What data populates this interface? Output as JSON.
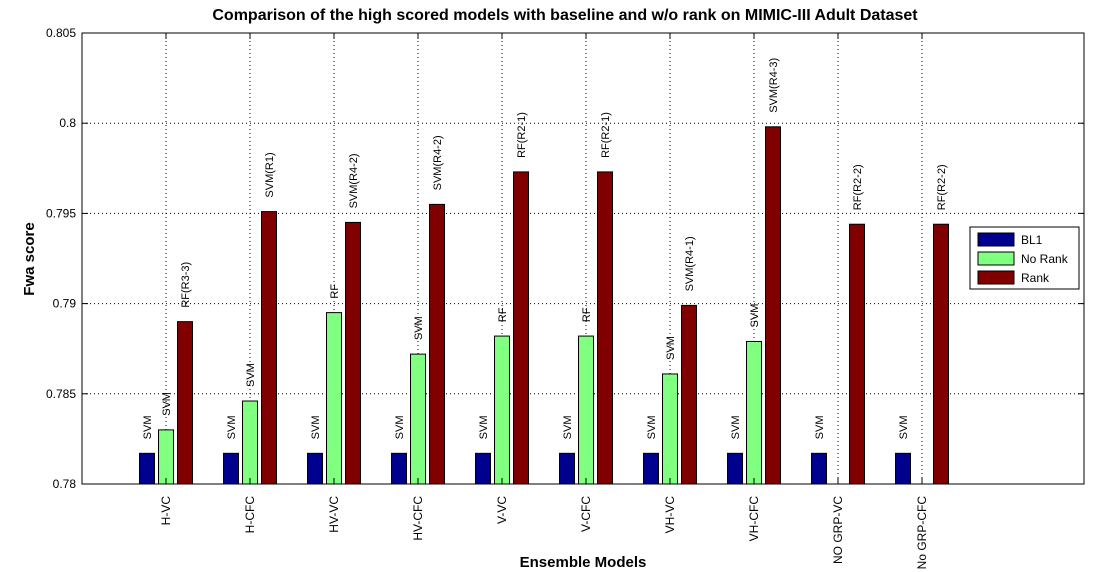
{
  "chart_data": {
    "type": "bar",
    "title": "Comparison of the high scored models with baseline and w/o rank on MIMIC-III Adult Dataset",
    "xlabel": "Ensemble Models",
    "ylabel": "Fwa score",
    "ylim": [
      0.78,
      0.805
    ],
    "yticks": [
      "0.78",
      "0.785",
      "0.79",
      "0.795",
      "0.8",
      "0.805"
    ],
    "grid": true,
    "legend_position": "right",
    "categories": [
      "H-VC",
      "H-CFC",
      "HV-VC",
      "HV-CFC",
      "V-VC",
      "V-CFC",
      "VH-VC",
      "VH-CFC",
      "NO GRP-VC",
      "No GRP-CFC"
    ],
    "series": [
      {
        "name": "BL1",
        "color": "#00008f",
        "values": [
          0.7817,
          0.7817,
          0.7817,
          0.7817,
          0.7817,
          0.7817,
          0.7817,
          0.7817,
          0.7817,
          0.7817
        ],
        "labels": [
          "SVM",
          "SVM",
          "SVM",
          "SVM",
          "SVM",
          "SVM",
          "SVM",
          "SVM",
          "SVM",
          "SVM"
        ]
      },
      {
        "name": "No Rank",
        "color": "#80ff80",
        "values": [
          0.783,
          0.7846,
          0.7895,
          0.7872,
          0.7882,
          0.7882,
          0.7861,
          0.7879,
          null,
          null
        ],
        "labels": [
          "SVM",
          "SVM",
          "RF",
          "SVM",
          "RF",
          "RF",
          "SVM",
          "SVM",
          "",
          ""
        ]
      },
      {
        "name": "Rank",
        "color": "#800000",
        "values": [
          0.789,
          0.7951,
          0.7945,
          0.7955,
          0.7973,
          0.7973,
          0.7899,
          0.7998,
          0.7944,
          0.7944
        ],
        "labels": [
          "RF(R3-3)",
          "SVM(R1)",
          "SVM(R4-2)",
          "SVM(R4-2)",
          "RF(R2-1)",
          "RF(R2-1)",
          "SVM(R4-1)",
          "SVM(R4-3)",
          "RF(R2-2)",
          "RF(R2-2)"
        ]
      }
    ]
  }
}
